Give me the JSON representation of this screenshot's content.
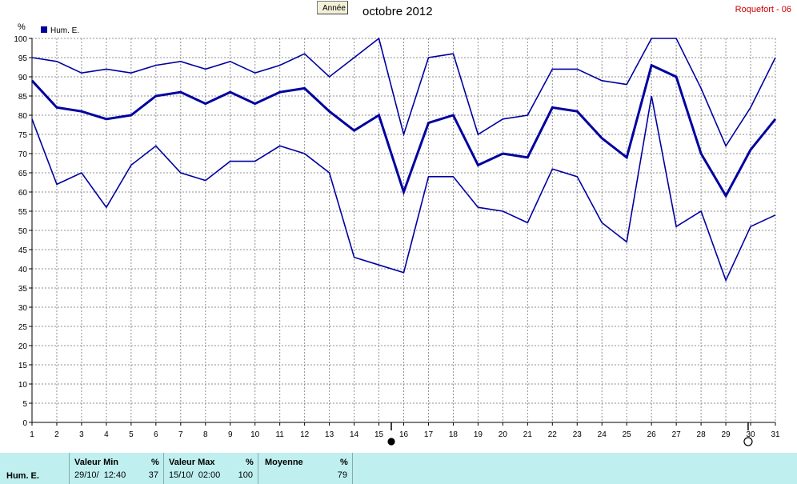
{
  "header": {
    "button_label": "Année",
    "title": "octobre 2012",
    "station": "Roquefort - 06"
  },
  "chart_data": {
    "type": "line",
    "ylabel": "%",
    "ylim": [
      0,
      100
    ],
    "yticks": [
      0,
      5,
      10,
      15,
      20,
      25,
      30,
      35,
      40,
      45,
      50,
      55,
      60,
      65,
      70,
      75,
      80,
      85,
      90,
      95,
      100
    ],
    "x": [
      1,
      2,
      3,
      4,
      5,
      6,
      7,
      8,
      9,
      10,
      11,
      12,
      13,
      14,
      15,
      16,
      17,
      18,
      19,
      20,
      21,
      22,
      23,
      24,
      25,
      26,
      27,
      28,
      29,
      30,
      31
    ],
    "grid": true,
    "legend": {
      "label": "Hum. E.",
      "color": "#0000a0",
      "position": "top-left"
    },
    "series": [
      {
        "role": "max",
        "values": [
          95,
          94,
          91,
          92,
          91,
          93,
          94,
          92,
          94,
          91,
          93,
          96,
          90,
          95,
          100,
          75,
          95,
          96,
          75,
          79,
          80,
          92,
          92,
          89,
          88,
          100,
          100,
          87,
          72,
          82,
          95
        ]
      },
      {
        "role": "mean",
        "values": [
          89,
          82,
          81,
          79,
          80,
          85,
          86,
          83,
          86,
          83,
          86,
          87,
          81,
          76,
          80,
          60,
          78,
          80,
          67,
          70,
          69,
          82,
          81,
          74,
          69,
          93,
          90,
          70,
          59,
          71,
          79
        ]
      },
      {
        "role": "min",
        "values": [
          79,
          62,
          65,
          56,
          67,
          72,
          65,
          63,
          68,
          68,
          72,
          70,
          65,
          43,
          41,
          39,
          64,
          64,
          56,
          55,
          52,
          66,
          64,
          52,
          47,
          85,
          51,
          55,
          37,
          51,
          54
        ]
      }
    ],
    "markers": [
      {
        "symbol": "filled-circle",
        "x": 15.5
      },
      {
        "symbol": "open-circle",
        "x": 29.9
      }
    ],
    "line_color": "#0000a0"
  },
  "stats": {
    "series_name": "Hum. E.",
    "min": {
      "heading": "Valeur Min",
      "unit": "%",
      "datetime": "29/10/  12:40",
      "value": "37"
    },
    "max": {
      "heading": "Valeur Max",
      "unit": "%",
      "datetime": "15/10/  02:00",
      "value": "100"
    },
    "mean": {
      "heading": "Moyenne",
      "unit": "%",
      "value": "79"
    }
  }
}
